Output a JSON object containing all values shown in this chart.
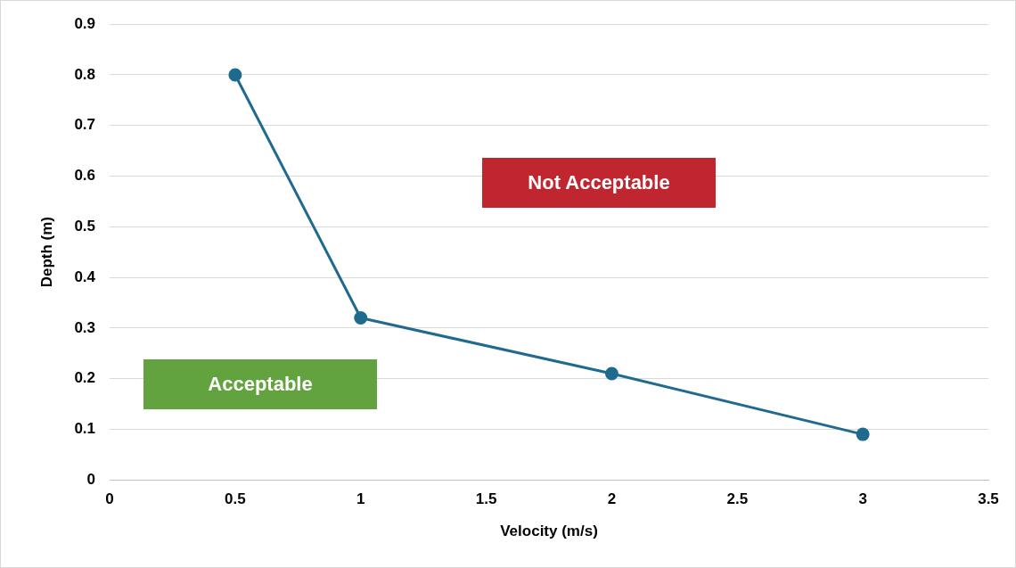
{
  "chart_data": {
    "type": "line",
    "xlabel": "Velocity (m/s)",
    "ylabel": "Depth (m)",
    "series": [
      {
        "color": "#1f6a8f",
        "x": [
          0.5,
          1,
          2,
          3
        ],
        "values": [
          0.8,
          0.32,
          0.21,
          0.09
        ]
      }
    ],
    "xlim": [
      0,
      3.5
    ],
    "xticks": [
      0,
      0.5,
      1,
      1.5,
      2,
      2.5,
      3,
      3.5
    ],
    "ylim": [
      0,
      0.9
    ],
    "yticks": [
      0,
      0.1,
      0.2,
      0.3,
      0.4,
      0.5,
      0.6,
      0.7,
      0.8,
      0.9
    ],
    "grid": "y",
    "legend": false,
    "marker": "circle",
    "line_style": "solid",
    "annotations": [
      "Not Acceptable",
      "Acceptable"
    ]
  }
}
